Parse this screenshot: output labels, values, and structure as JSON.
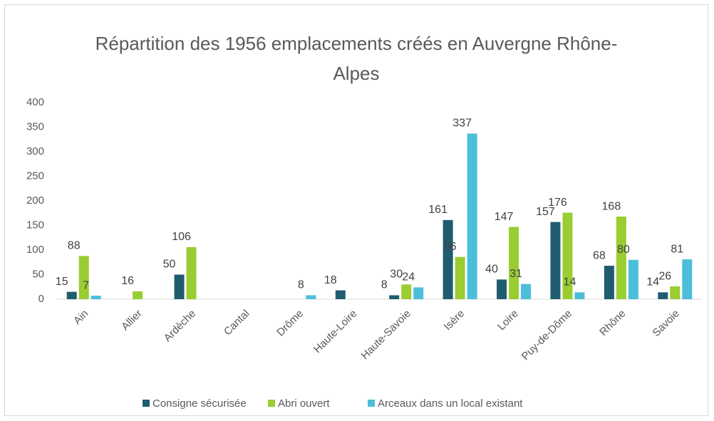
{
  "chart_data": {
    "type": "bar",
    "title": "Répartition des 1956 emplacements créés en Auvergne Rhône-Alpes",
    "categories": [
      "Ain",
      "Allier",
      "Ardèche",
      "Cantal",
      "Drôme",
      "Haute-Loire",
      "Haute-Savoie",
      "Isère",
      "Loire",
      "Puy-de-Dôme",
      "Rhône",
      "Savoie"
    ],
    "series": [
      {
        "name": "Consigne sécurisée",
        "color": "#1f5c70",
        "values": [
          15,
          null,
          50,
          null,
          null,
          18,
          8,
          161,
          40,
          157,
          68,
          14
        ]
      },
      {
        "name": "Abri ouvert",
        "color": "#9acd32",
        "values": [
          88,
          16,
          106,
          null,
          null,
          null,
          30,
          86,
          147,
          176,
          168,
          26
        ]
      },
      {
        "name": "Arceaux dans un local existant",
        "color": "#4bbfd9",
        "values": [
          7,
          null,
          null,
          null,
          8,
          null,
          24,
          337,
          31,
          14,
          80,
          81
        ]
      }
    ],
    "ylim": [
      0,
      400
    ],
    "yticks": [
      0,
      50,
      100,
      150,
      200,
      250,
      300,
      350,
      400
    ],
    "grid": false,
    "legend": "bottom"
  }
}
